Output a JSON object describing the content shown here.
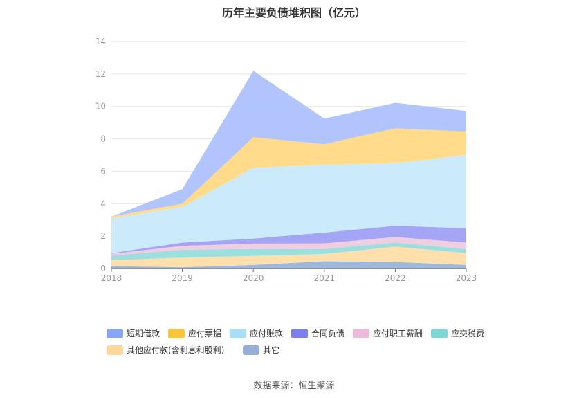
{
  "chart_data": {
    "type": "area",
    "stacked": true,
    "title": "历年主要负债堆积图（亿元）",
    "x": [
      "2018",
      "2019",
      "2020",
      "2021",
      "2022",
      "2023"
    ],
    "ylim": [
      0,
      14
    ],
    "yticks": [
      0,
      2,
      4,
      6,
      8,
      10,
      12,
      14
    ],
    "grid": true,
    "legend_position": "bottom",
    "series": [
      {
        "name": "其它",
        "color": "#94b0d8",
        "values": [
          0.15,
          0.08,
          0.22,
          0.45,
          0.4,
          0.22
        ]
      },
      {
        "name": "其他应付款(含利息和股利)",
        "color": "#ffdba3",
        "values": [
          0.35,
          0.6,
          0.56,
          0.45,
          0.95,
          0.73
        ]
      },
      {
        "name": "应交税费",
        "color": "#90dcdc",
        "values": [
          0.3,
          0.48,
          0.43,
          0.3,
          0.25,
          0.25
        ]
      },
      {
        "name": "应付职工薪酬",
        "color": "#f0c8df",
        "values": [
          0.1,
          0.24,
          0.33,
          0.35,
          0.35,
          0.4
        ]
      },
      {
        "name": "合同负债",
        "color": "#9b9bf5",
        "values": [
          0.05,
          0.2,
          0.31,
          0.67,
          0.69,
          0.89
        ]
      },
      {
        "name": "应付账款",
        "color": "#c5e9fb",
        "values": [
          2.15,
          2.2,
          4.36,
          4.18,
          3.87,
          4.51
        ]
      },
      {
        "name": "应付票据",
        "color": "#ffd77e",
        "values": [
          0.1,
          0.2,
          1.89,
          1.27,
          2.14,
          1.45
        ]
      },
      {
        "name": "短期借款",
        "color": "#a9bffc",
        "values": [
          0.0,
          0.9,
          4.1,
          1.58,
          1.57,
          1.27
        ]
      }
    ],
    "legend": [
      {
        "name": "短期借款",
        "swatch": "#88a4f8"
      },
      {
        "name": "应付票据",
        "swatch": "#fbc53a"
      },
      {
        "name": "应付账款",
        "swatch": "#a8def8"
      },
      {
        "name": "合同负债",
        "swatch": "#7d7ff0"
      },
      {
        "name": "应付职工薪酬",
        "swatch": "#ebbbd9"
      },
      {
        "name": "应交税费",
        "swatch": "#7fd6d6"
      },
      {
        "name": "其他应付款(含利息和股利)",
        "swatch": "#ffd79a"
      },
      {
        "name": "其它",
        "swatch": "#94b0d8"
      }
    ],
    "source": "数据来源：恒生聚源"
  }
}
